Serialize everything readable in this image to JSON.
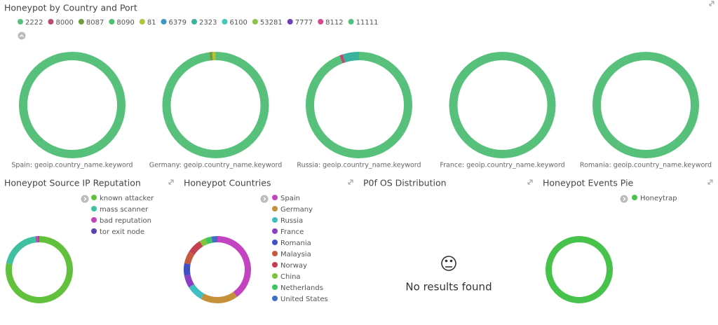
{
  "chart_data": [
    {
      "type": "pie",
      "title": "Honeypot by Country and Port",
      "categories": [
        "Spain: geoip.country_name.keyword",
        "Germany: geoip.country_name.keyword",
        "Russia: geoip.country_name.keyword",
        "France: geoip.country_name.keyword",
        "Romania: geoip.country_name.keyword"
      ],
      "series": [
        {
          "name": "2222",
          "color": "#57c17b",
          "values": [
            100,
            98,
            94,
            100,
            100
          ]
        },
        {
          "name": "8000",
          "color": "#bc4b6f",
          "values": [
            0,
            0,
            1,
            0,
            0
          ]
        },
        {
          "name": "8087",
          "color": "#6f9e3c",
          "values": [
            0,
            1,
            0,
            0,
            0
          ]
        },
        {
          "name": "8090",
          "color": "#4fbf73",
          "values": [
            0,
            0,
            0,
            0,
            0
          ]
        },
        {
          "name": "81",
          "color": "#b3c534",
          "values": [
            0,
            1,
            0,
            0,
            0
          ]
        },
        {
          "name": "6379",
          "color": "#3f95c4",
          "values": [
            0,
            0,
            0,
            0,
            0
          ]
        },
        {
          "name": "2323",
          "color": "#39b39e",
          "values": [
            0,
            0,
            5,
            0,
            0
          ]
        },
        {
          "name": "6100",
          "color": "#46c8b8",
          "values": [
            0,
            0,
            0,
            0,
            0
          ]
        },
        {
          "name": "53281",
          "color": "#8bc34a",
          "values": [
            0,
            0,
            0,
            0,
            0
          ]
        },
        {
          "name": "7777",
          "color": "#6f3fb5",
          "values": [
            0,
            0,
            0,
            0,
            0
          ]
        },
        {
          "name": "8112",
          "color": "#d14b8f",
          "values": [
            0,
            0,
            0,
            0,
            0
          ]
        },
        {
          "name": "11111",
          "color": "#4cc27a",
          "values": [
            0,
            0,
            0,
            0,
            0
          ]
        }
      ]
    },
    {
      "type": "pie",
      "title": "Honeypot Source IP Reputation",
      "categories": [
        "known attacker",
        "mass scanner",
        "bad reputation",
        "tor exit node"
      ],
      "values": [
        78,
        20,
        1.5,
        0.5
      ],
      "colors": [
        "#62c13c",
        "#3fc0a0",
        "#c542b8",
        "#5b3fb5"
      ]
    },
    {
      "type": "pie",
      "title": "Honeypot Countries",
      "categories": [
        "Spain",
        "Germany",
        "Russia",
        "France",
        "Romania",
        "Malaysia",
        "Norway",
        "China",
        "Netherlands",
        "United States"
      ],
      "values": [
        40,
        18,
        8,
        6,
        6,
        6,
        7,
        3,
        3,
        3
      ],
      "colors": [
        "#c443c0",
        "#c4913a",
        "#3fbfbf",
        "#8a3fc4",
        "#3f4fc4",
        "#c45a3f",
        "#c43f4f",
        "#7fc43f",
        "#3fc45f",
        "#3f6fc4"
      ]
    },
    {
      "type": "pie",
      "title": "P0f OS Distribution",
      "message": "No results found"
    },
    {
      "type": "pie",
      "title": "Honeypot Events Pie",
      "categories": [
        "Honeytrap"
      ],
      "values": [
        100
      ],
      "colors": [
        "#47c24b"
      ]
    }
  ]
}
